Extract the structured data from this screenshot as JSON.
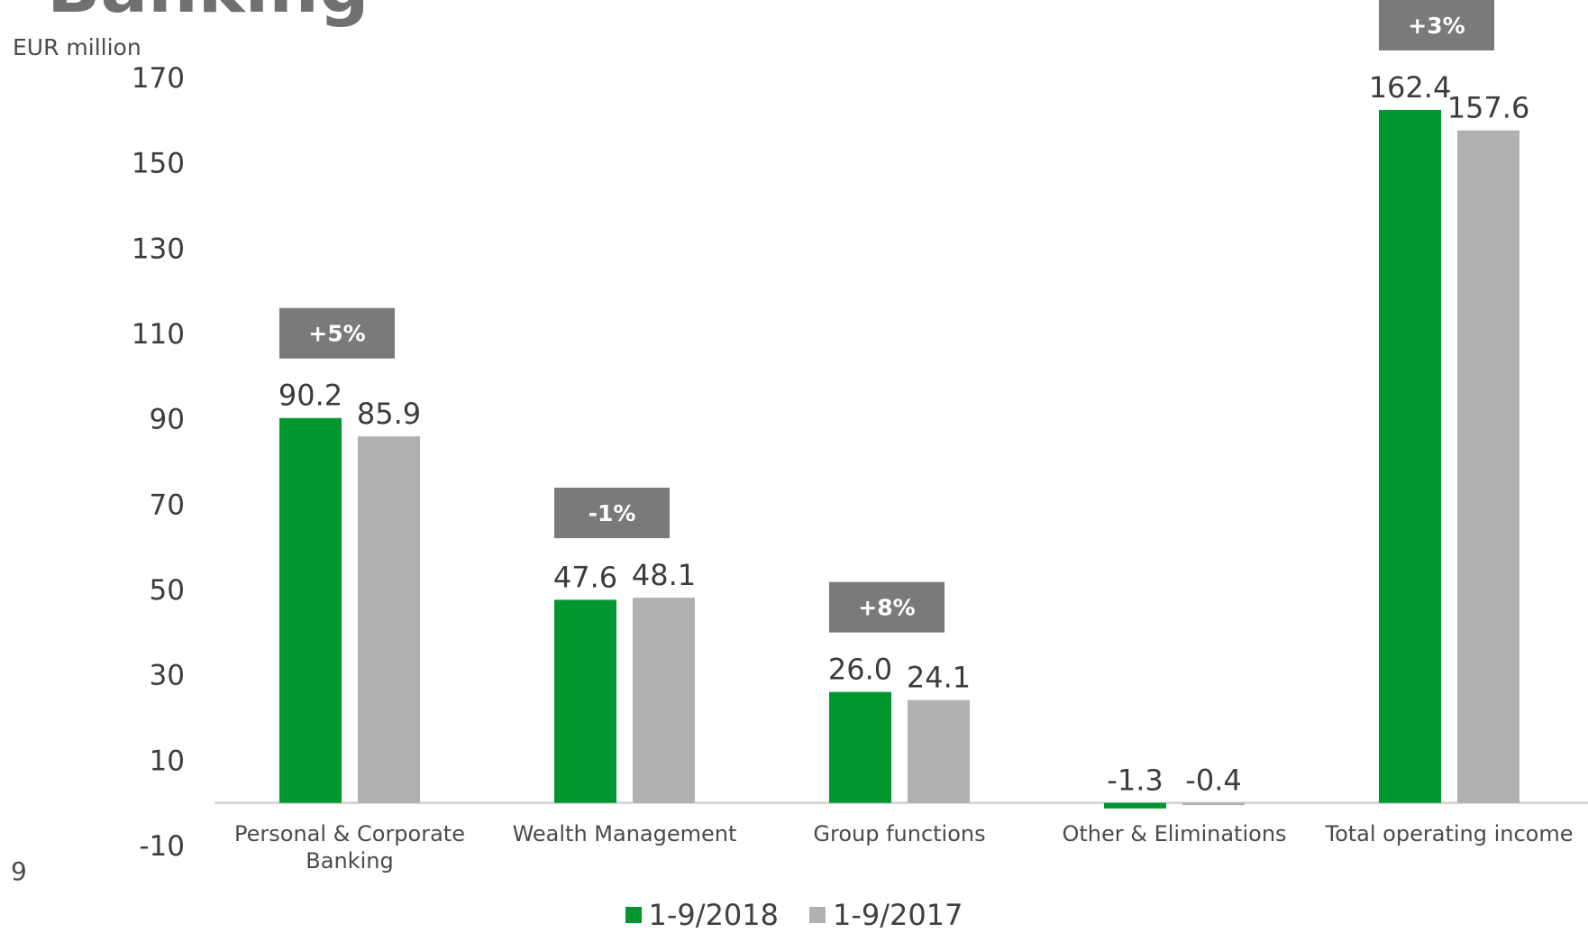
{
  "header": {
    "title": "Banking",
    "unit": "EUR million"
  },
  "footer": {
    "page_number": "9"
  },
  "colors": {
    "series_2018": "#00962f",
    "series_2017": "#b0b1b3",
    "badge": "#7a7a7a",
    "axis": "#c8c8c8"
  },
  "chart_data": {
    "type": "bar",
    "categories": [
      "Personal & Corporate Banking",
      "Wealth Management",
      "Group functions",
      "Other & Eliminations",
      "Total operating income"
    ],
    "series": [
      {
        "name": "1-9/2018",
        "values": [
          90.2,
          47.6,
          26.0,
          -1.3,
          162.4
        ],
        "labels": [
          "90.2",
          "47.6",
          "26.0",
          "-1.3",
          "162.4"
        ]
      },
      {
        "name": "1-9/2017",
        "values": [
          85.9,
          48.1,
          24.1,
          -0.4,
          157.6
        ],
        "labels": [
          "85.9",
          "48.1",
          "24.1",
          "-0.4",
          "157.6"
        ]
      }
    ],
    "change_badges": [
      "+5%",
      "-1%",
      "+8%",
      "",
      "+3%"
    ],
    "yticks": [
      170,
      150,
      130,
      110,
      90,
      70,
      50,
      30,
      10,
      -10
    ],
    "ylim": [
      -10,
      170
    ],
    "ylabel": "EUR million",
    "xlabel": "",
    "grid": false,
    "legend_position": "bottom-center"
  }
}
